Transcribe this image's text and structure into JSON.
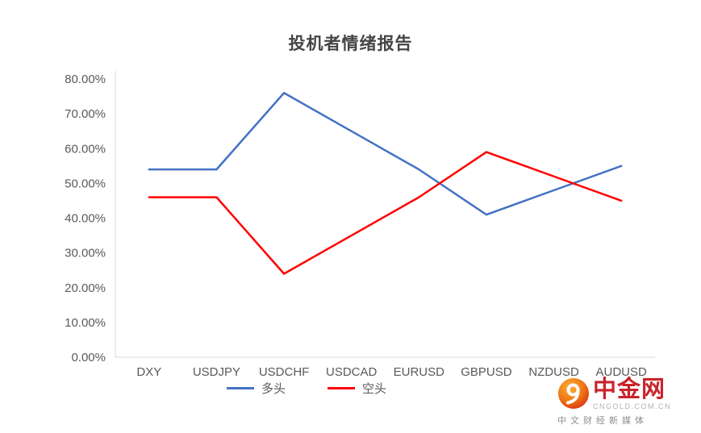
{
  "chart_data": {
    "type": "line",
    "title": "投机者情绪报告",
    "categories": [
      "DXY",
      "USDJPY",
      "USDCHF",
      "USDCAD",
      "EURUSD",
      "GBPUSD",
      "NZDUSD",
      "AUDUSD"
    ],
    "series": [
      {
        "id": "long",
        "name": "多头",
        "color": "#4472c4",
        "values": [
          54,
          54,
          76,
          65,
          54,
          41,
          48,
          55
        ]
      },
      {
        "id": "short",
        "name": "空头",
        "color": "#fe0000",
        "values": [
          46,
          46,
          24,
          35,
          46,
          59,
          52,
          45
        ]
      }
    ],
    "ylim": [
      0,
      80
    ],
    "ytick_step": 10,
    "ytick_labels": [
      "0.00%",
      "10.00%",
      "20.00%",
      "30.00%",
      "40.00%",
      "50.00%",
      "60.00%",
      "70.00%",
      "80.00%"
    ],
    "ylabel": "",
    "xlabel": "",
    "grid": "off",
    "legend_position": "bottom"
  },
  "logo": {
    "brand": "中金网",
    "domain": "CNGOLD.COM.CN",
    "tagline": "中文财经新媒体"
  }
}
